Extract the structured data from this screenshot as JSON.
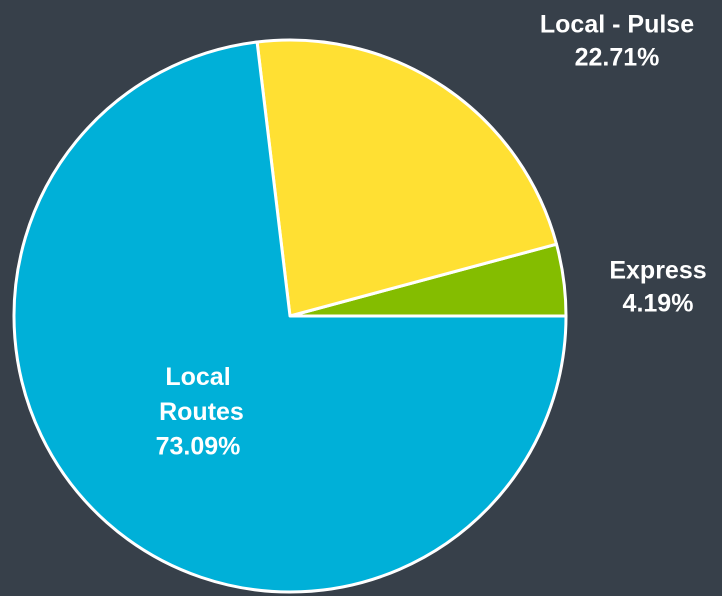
{
  "chart_data": {
    "type": "pie",
    "categories": [
      "Express",
      "Local - Pulse",
      "Local Routes"
    ],
    "values": [
      4.19,
      22.71,
      73.09
    ],
    "value_labels": [
      "4.19%",
      "22.71%",
      "73.09%"
    ],
    "colors": [
      "#84bd00",
      "#ffe033",
      "#00b0d8"
    ]
  }
}
